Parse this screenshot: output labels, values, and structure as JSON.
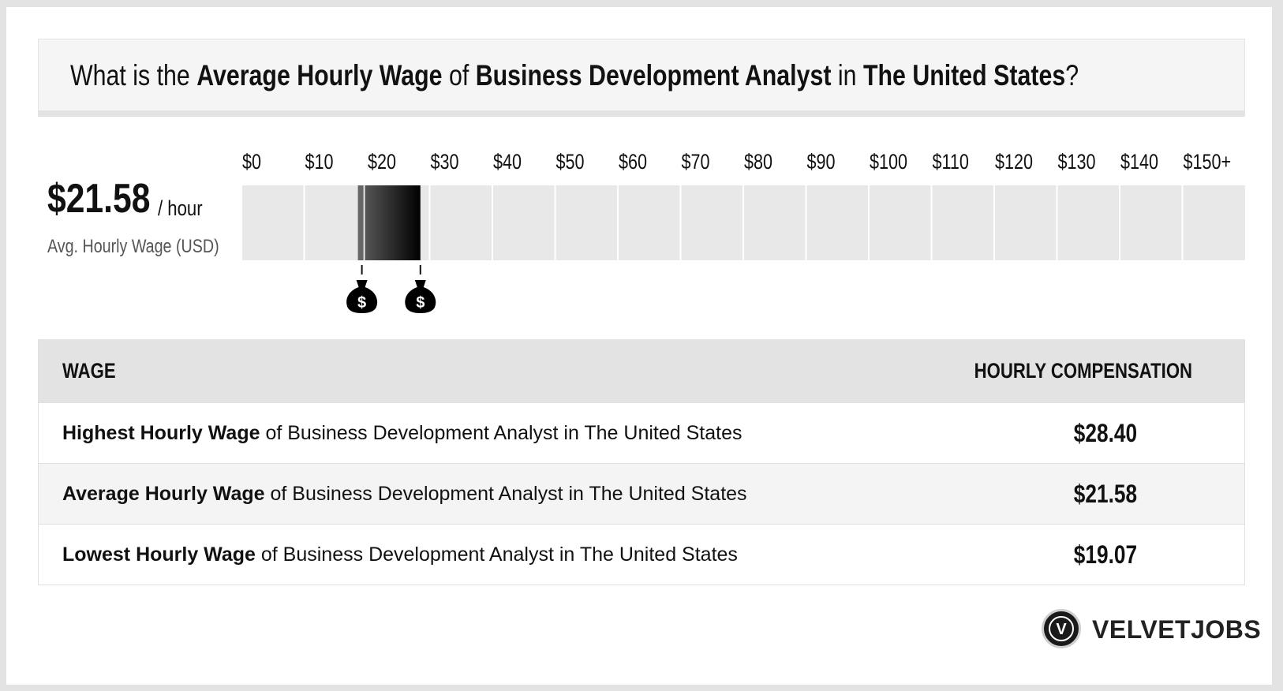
{
  "title": {
    "part1": "What is the ",
    "bold1": "Average Hourly Wage",
    "part2": " of ",
    "bold2": "Business Development Analyst",
    "part3": " in ",
    "bold3": "The United States",
    "part4": "?"
  },
  "summary": {
    "value": "$21.58",
    "unit": "/ hour",
    "label": "Avg. Hourly Wage (USD)"
  },
  "chart_data": {
    "type": "bar",
    "tick_labels": [
      "$0",
      "$10",
      "$20",
      "$30",
      "$40",
      "$50",
      "$60",
      "$70",
      "$80",
      "$90",
      "$100",
      "$110",
      "$120",
      "$130",
      "$140",
      "$150+"
    ],
    "xlim": [
      0,
      150
    ],
    "range": {
      "low": 19.07,
      "average": 21.58,
      "high": 28.4
    },
    "markers": [
      {
        "value": 19.07,
        "icon": "money-bag-icon",
        "symbol": "$"
      },
      {
        "value": 28.4,
        "icon": "money-bag-icon",
        "symbol": "$"
      }
    ],
    "colors": {
      "track": "#e8e8e8",
      "range_start": "#555555",
      "range_end": "#000000",
      "low_marker": "#666666"
    }
  },
  "table": {
    "header_left": "WAGE",
    "header_right": "HOURLY COMPENSATION",
    "rows": [
      {
        "bold": "Highest Hourly Wage",
        "rest": " of Business Development Analyst in The United States",
        "value": "$28.40"
      },
      {
        "bold": "Average Hourly Wage",
        "rest": " of Business Development Analyst in The United States",
        "value": "$21.58"
      },
      {
        "bold": "Lowest Hourly Wage",
        "rest": " of Business Development Analyst in The United States",
        "value": "$19.07"
      }
    ]
  },
  "brand": {
    "icon_letter": "V",
    "name": "VELVETJOBS"
  }
}
